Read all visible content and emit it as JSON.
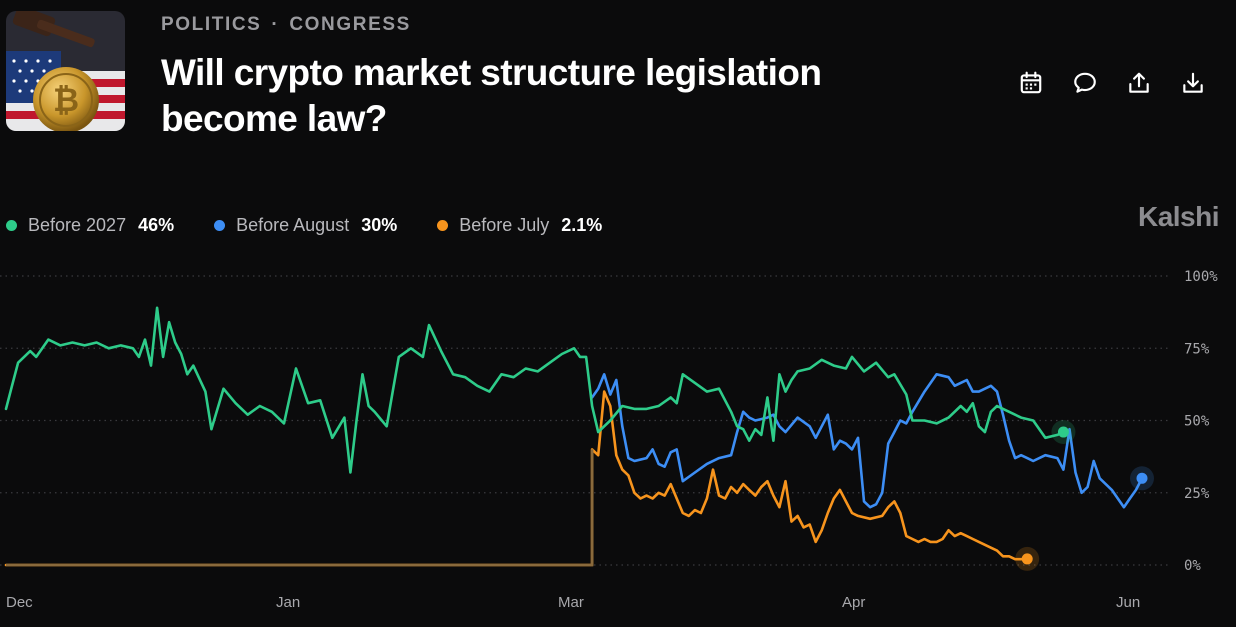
{
  "header": {
    "category": "POLITICS",
    "separator": "·",
    "subcategory": "CONGRESS",
    "title": "Will crypto market structure legislation become law?"
  },
  "actions": {
    "icons": [
      "calendar-icon",
      "comment-icon",
      "share-icon",
      "download-icon"
    ]
  },
  "brand": "Kalshi",
  "legend": [
    {
      "name": "Before 2027",
      "value": "46%",
      "color": "#2ecc8a"
    },
    {
      "name": "Before August",
      "value": "30%",
      "color": "#3d8ef5"
    },
    {
      "name": "Before July",
      "value": "2.1%",
      "color": "#f7941d"
    }
  ],
  "chart_data": {
    "type": "line",
    "x_labels": [
      "Dec",
      "Jan",
      "Mar",
      "Apr",
      "Jun"
    ],
    "x_label_positions_days": [
      0,
      31,
      90,
      121,
      182
    ],
    "x_range_days": [
      0,
      185
    ],
    "y_ticks": [
      "100%",
      "75%",
      "50%",
      "25%",
      "0%"
    ],
    "y_tick_values": [
      100,
      75,
      50,
      25,
      0
    ],
    "ylim": [
      0,
      100
    ],
    "grid": "horizontal dotted",
    "legend_position": "top-left",
    "series": [
      {
        "name": "Before 2027",
        "color": "#2ecc8a",
        "points": [
          [
            0,
            54
          ],
          [
            1,
            62
          ],
          [
            2,
            70
          ],
          [
            4,
            74
          ],
          [
            5,
            72
          ],
          [
            7,
            78
          ],
          [
            9,
            76
          ],
          [
            11,
            77
          ],
          [
            13,
            76
          ],
          [
            15,
            77
          ],
          [
            17,
            75
          ],
          [
            19,
            76
          ],
          [
            21,
            75
          ],
          [
            22,
            72
          ],
          [
            23,
            78
          ],
          [
            24,
            69
          ],
          [
            25,
            89
          ],
          [
            26,
            72
          ],
          [
            27,
            84
          ],
          [
            28,
            77
          ],
          [
            29,
            73
          ],
          [
            30,
            66
          ],
          [
            31,
            69
          ],
          [
            33,
            60
          ],
          [
            34,
            47
          ],
          [
            36,
            61
          ],
          [
            38,
            56
          ],
          [
            40,
            52
          ],
          [
            42,
            55
          ],
          [
            44,
            53
          ],
          [
            46,
            49
          ],
          [
            48,
            68
          ],
          [
            50,
            56
          ],
          [
            52,
            57
          ],
          [
            54,
            44
          ],
          [
            56,
            51
          ],
          [
            57,
            32
          ],
          [
            58,
            50
          ],
          [
            59,
            66
          ],
          [
            60,
            55
          ],
          [
            61,
            53
          ],
          [
            63,
            48
          ],
          [
            64,
            60
          ],
          [
            65,
            72
          ],
          [
            67,
            75
          ],
          [
            69,
            72
          ],
          [
            70,
            83
          ],
          [
            72,
            74
          ],
          [
            74,
            66
          ],
          [
            76,
            65
          ],
          [
            78,
            62
          ],
          [
            80,
            60
          ],
          [
            82,
            66
          ],
          [
            84,
            65
          ],
          [
            86,
            68
          ],
          [
            88,
            67
          ],
          [
            90,
            70
          ],
          [
            92,
            73
          ],
          [
            94,
            75
          ],
          [
            95,
            72
          ],
          [
            96,
            72
          ],
          [
            97,
            55
          ],
          [
            98,
            46
          ],
          [
            99,
            48
          ],
          [
            100,
            50
          ],
          [
            102,
            55
          ],
          [
            104,
            54
          ],
          [
            106,
            54
          ],
          [
            108,
            55
          ],
          [
            110,
            58
          ],
          [
            111,
            56
          ],
          [
            112,
            66
          ],
          [
            114,
            63
          ],
          [
            116,
            60
          ],
          [
            118,
            61
          ],
          [
            120,
            53
          ],
          [
            121,
            48
          ],
          [
            122,
            47
          ],
          [
            123,
            43
          ],
          [
            124,
            47
          ],
          [
            125,
            45
          ],
          [
            126,
            58
          ],
          [
            127,
            43
          ],
          [
            128,
            66
          ],
          [
            129,
            60
          ],
          [
            130,
            64
          ],
          [
            131,
            67
          ],
          [
            133,
            68
          ],
          [
            135,
            71
          ],
          [
            137,
            69
          ],
          [
            139,
            68
          ],
          [
            140,
            72
          ],
          [
            142,
            67
          ],
          [
            144,
            70
          ],
          [
            146,
            65
          ],
          [
            147,
            66
          ],
          [
            149,
            59
          ],
          [
            150,
            50
          ],
          [
            152,
            50
          ],
          [
            154,
            49
          ],
          [
            156,
            51
          ],
          [
            158,
            55
          ],
          [
            159,
            53
          ],
          [
            160,
            56
          ],
          [
            161,
            48
          ],
          [
            162,
            46
          ],
          [
            163,
            53
          ],
          [
            164,
            55
          ],
          [
            166,
            53
          ],
          [
            168,
            51
          ],
          [
            170,
            50
          ],
          [
            172,
            44
          ],
          [
            174,
            45
          ],
          [
            175,
            46
          ]
        ]
      },
      {
        "name": "Before August",
        "color": "#3d8ef5",
        "points": [
          [
            97,
            58
          ],
          [
            98,
            61
          ],
          [
            99,
            66
          ],
          [
            100,
            59
          ],
          [
            101,
            64
          ],
          [
            102,
            48
          ],
          [
            103,
            37
          ],
          [
            104,
            36
          ],
          [
            106,
            37
          ],
          [
            107,
            40
          ],
          [
            108,
            35
          ],
          [
            109,
            34
          ],
          [
            110,
            39
          ],
          [
            111,
            40
          ],
          [
            112,
            29
          ],
          [
            114,
            32
          ],
          [
            116,
            35
          ],
          [
            118,
            37
          ],
          [
            120,
            38
          ],
          [
            121,
            46
          ],
          [
            122,
            53
          ],
          [
            123,
            51
          ],
          [
            124,
            50
          ],
          [
            126,
            51
          ],
          [
            127,
            52
          ],
          [
            128,
            48
          ],
          [
            129,
            46
          ],
          [
            131,
            51
          ],
          [
            133,
            48
          ],
          [
            134,
            44
          ],
          [
            136,
            52
          ],
          [
            137,
            40
          ],
          [
            138,
            43
          ],
          [
            139,
            42
          ],
          [
            140,
            40
          ],
          [
            141,
            44
          ],
          [
            142,
            22
          ],
          [
            143,
            20
          ],
          [
            144,
            21
          ],
          [
            145,
            25
          ],
          [
            146,
            42
          ],
          [
            147,
            46
          ],
          [
            148,
            50
          ],
          [
            149,
            49
          ],
          [
            150,
            53
          ],
          [
            152,
            60
          ],
          [
            154,
            66
          ],
          [
            156,
            65
          ],
          [
            157,
            62
          ],
          [
            158,
            63
          ],
          [
            159,
            64
          ],
          [
            160,
            60
          ],
          [
            161,
            60
          ],
          [
            163,
            62
          ],
          [
            164,
            60
          ],
          [
            165,
            52
          ],
          [
            166,
            43
          ],
          [
            167,
            37
          ],
          [
            168,
            38
          ],
          [
            169,
            37
          ],
          [
            170,
            36
          ],
          [
            172,
            38
          ],
          [
            174,
            37
          ],
          [
            175,
            33
          ],
          [
            176,
            47
          ],
          [
            177,
            32
          ],
          [
            178,
            25
          ],
          [
            179,
            27
          ],
          [
            180,
            36
          ],
          [
            181,
            30
          ],
          [
            182,
            28
          ],
          [
            183,
            26
          ],
          [
            184,
            23
          ],
          [
            185,
            20
          ],
          [
            186,
            23
          ],
          [
            187,
            26
          ],
          [
            188,
            30
          ]
        ]
      },
      {
        "name": "Before July",
        "color": "#f7941d",
        "points": [
          [
            0,
            0
          ],
          [
            97,
            0
          ],
          [
            97,
            40
          ],
          [
            98,
            38
          ],
          [
            99,
            60
          ],
          [
            100,
            55
          ],
          [
            101,
            38
          ],
          [
            102,
            33
          ],
          [
            103,
            31
          ],
          [
            104,
            25
          ],
          [
            105,
            23
          ],
          [
            106,
            24
          ],
          [
            107,
            23
          ],
          [
            108,
            25
          ],
          [
            109,
            24
          ],
          [
            110,
            28
          ],
          [
            111,
            23
          ],
          [
            112,
            18
          ],
          [
            113,
            17
          ],
          [
            114,
            19
          ],
          [
            115,
            18
          ],
          [
            116,
            23
          ],
          [
            117,
            33
          ],
          [
            118,
            24
          ],
          [
            119,
            23
          ],
          [
            120,
            27
          ],
          [
            121,
            25
          ],
          [
            122,
            28
          ],
          [
            123,
            26
          ],
          [
            124,
            24
          ],
          [
            125,
            27
          ],
          [
            126,
            29
          ],
          [
            127,
            24
          ],
          [
            128,
            20
          ],
          [
            129,
            29
          ],
          [
            130,
            15
          ],
          [
            131,
            17
          ],
          [
            132,
            13
          ],
          [
            133,
            14
          ],
          [
            134,
            8
          ],
          [
            135,
            12
          ],
          [
            136,
            18
          ],
          [
            137,
            23
          ],
          [
            138,
            26
          ],
          [
            139,
            22
          ],
          [
            140,
            18
          ],
          [
            141,
            17
          ],
          [
            143,
            16
          ],
          [
            145,
            17
          ],
          [
            146,
            20
          ],
          [
            147,
            22
          ],
          [
            148,
            18
          ],
          [
            149,
            10
          ],
          [
            150,
            9
          ],
          [
            151,
            8
          ],
          [
            152,
            9
          ],
          [
            153,
            8
          ],
          [
            154,
            8
          ],
          [
            155,
            9
          ],
          [
            156,
            12
          ],
          [
            157,
            10
          ],
          [
            158,
            11
          ],
          [
            159,
            10
          ],
          [
            160,
            9
          ],
          [
            161,
            8
          ],
          [
            162,
            7
          ],
          [
            163,
            6
          ],
          [
            164,
            5
          ],
          [
            165,
            3
          ],
          [
            166,
            3
          ],
          [
            167,
            2
          ],
          [
            168,
            2
          ],
          [
            169,
            2.1
          ]
        ]
      }
    ]
  }
}
